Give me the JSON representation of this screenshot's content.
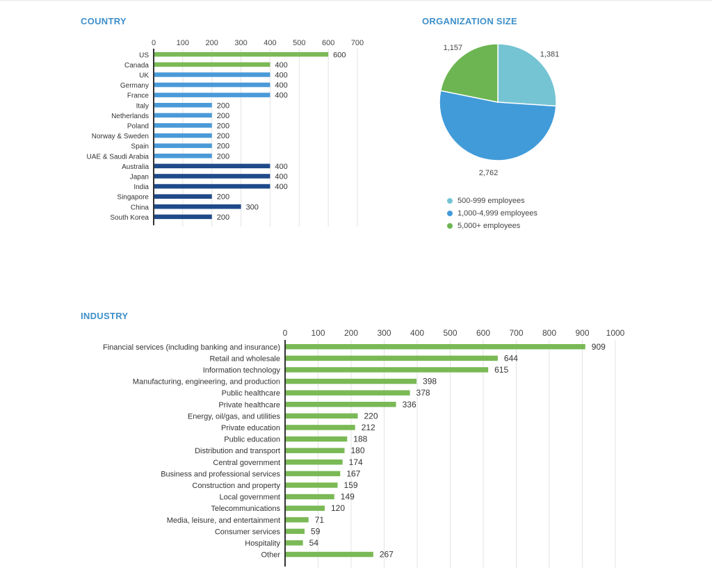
{
  "sections": {
    "country": "COUNTRY",
    "org_size": "ORGANIZATION SIZE",
    "industry": "INDUSTRY"
  },
  "colors": {
    "green": "#7ab955",
    "light_blue": "#4a9ad8",
    "dark_blue": "#1f4a8a",
    "teal": "#75c4d4",
    "pie_blue": "#419bd9",
    "pie_green": "#6cb552",
    "title_blue": "#3d8fc9"
  },
  "chart_data": [
    {
      "id": "country",
      "type": "bar",
      "orientation": "horizontal",
      "title": "COUNTRY",
      "xlim": [
        0,
        700
      ],
      "ticks": [
        0,
        100,
        200,
        300,
        400,
        500,
        600,
        700
      ],
      "grid": true,
      "categories": [
        "US",
        "Canada",
        "UK",
        "Germany",
        "France",
        "Italy",
        "Netherlands",
        "Poland",
        "Norway & Sweden",
        "Spain",
        "UAE & Saudi Arabia",
        "Australia",
        "Japan",
        "India",
        "Singapore",
        "China",
        "South Korea"
      ],
      "values": [
        600,
        400,
        400,
        400,
        400,
        200,
        200,
        200,
        200,
        200,
        200,
        400,
        400,
        400,
        200,
        300,
        200
      ],
      "bar_colors": [
        "green",
        "green",
        "light_blue",
        "light_blue",
        "light_blue",
        "light_blue",
        "light_blue",
        "light_blue",
        "light_blue",
        "light_blue",
        "light_blue",
        "dark_blue",
        "dark_blue",
        "dark_blue",
        "dark_blue",
        "dark_blue",
        "dark_blue"
      ]
    },
    {
      "id": "org_size",
      "type": "pie",
      "title": "ORGANIZATION SIZE",
      "slices": [
        {
          "label": "500-999 employees",
          "value": 1381,
          "value_label": "1,381",
          "color": "teal"
        },
        {
          "label": "1,000-4,999 employees",
          "value": 2762,
          "value_label": "2,762",
          "color": "pie_blue"
        },
        {
          "label": "5,000+ employees",
          "value": 1157,
          "value_label": "1,157",
          "color": "pie_green"
        }
      ],
      "legend_position": "bottom"
    },
    {
      "id": "industry",
      "type": "bar",
      "orientation": "horizontal",
      "title": "INDUSTRY",
      "xlim": [
        0,
        1000
      ],
      "ticks": [
        0,
        100,
        200,
        300,
        400,
        500,
        600,
        700,
        800,
        900,
        1000
      ],
      "grid": true,
      "categories": [
        "Financial services (including banking and insurance)",
        "Retail and wholesale",
        "Information technology",
        "Manufacturing, engineering, and production",
        "Public healthcare",
        "Private healthcare",
        "Energy, oil/gas, and utilities",
        "Private education",
        "Public education",
        "Distribution and transport",
        "Central government",
        "Business and professional services",
        "Construction and property",
        "Local government",
        "Telecommunications",
        "Media, leisure, and entertainment",
        "Consumer services",
        "Hospitality",
        "Other"
      ],
      "values": [
        909,
        644,
        615,
        398,
        378,
        336,
        220,
        212,
        188,
        180,
        174,
        167,
        159,
        149,
        120,
        71,
        59,
        54,
        267
      ],
      "bar_color": "green"
    }
  ]
}
